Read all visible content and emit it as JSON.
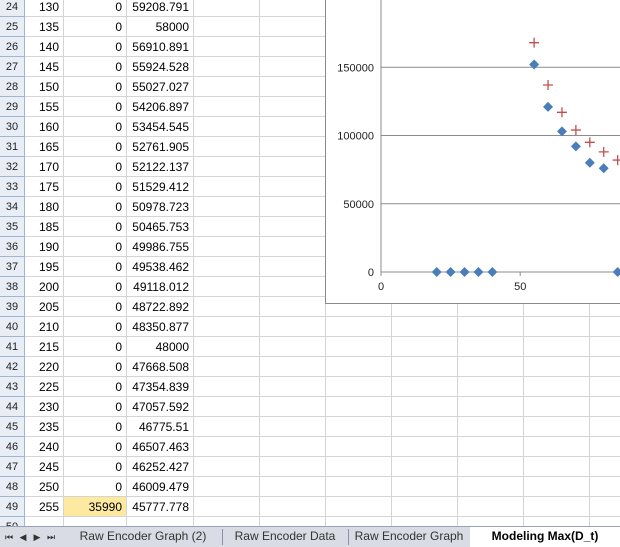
{
  "rows": [
    {
      "row": "24",
      "b": "130",
      "c": "0",
      "d": "59208.791"
    },
    {
      "row": "25",
      "b": "135",
      "c": "0",
      "d": "58000"
    },
    {
      "row": "26",
      "b": "140",
      "c": "0",
      "d": "56910.891"
    },
    {
      "row": "27",
      "b": "145",
      "c": "0",
      "d": "55924.528"
    },
    {
      "row": "28",
      "b": "150",
      "c": "0",
      "d": "55027.027"
    },
    {
      "row": "29",
      "b": "155",
      "c": "0",
      "d": "54206.897"
    },
    {
      "row": "30",
      "b": "160",
      "c": "0",
      "d": "53454.545"
    },
    {
      "row": "31",
      "b": "165",
      "c": "0",
      "d": "52761.905"
    },
    {
      "row": "32",
      "b": "170",
      "c": "0",
      "d": "52122.137"
    },
    {
      "row": "33",
      "b": "175",
      "c": "0",
      "d": "51529.412"
    },
    {
      "row": "34",
      "b": "180",
      "c": "0",
      "d": "50978.723"
    },
    {
      "row": "35",
      "b": "185",
      "c": "0",
      "d": "50465.753"
    },
    {
      "row": "36",
      "b": "190",
      "c": "0",
      "d": "49986.755"
    },
    {
      "row": "37",
      "b": "195",
      "c": "0",
      "d": "49538.462"
    },
    {
      "row": "38",
      "b": "200",
      "c": "0",
      "d": "49118.012"
    },
    {
      "row": "39",
      "b": "205",
      "c": "0",
      "d": "48722.892"
    },
    {
      "row": "40",
      "b": "210",
      "c": "0",
      "d": "48350.877"
    },
    {
      "row": "41",
      "b": "215",
      "c": "0",
      "d": "48000"
    },
    {
      "row": "42",
      "b": "220",
      "c": "0",
      "d": "47668.508"
    },
    {
      "row": "43",
      "b": "225",
      "c": "0",
      "d": "47354.839"
    },
    {
      "row": "44",
      "b": "230",
      "c": "0",
      "d": "47057.592"
    },
    {
      "row": "45",
      "b": "235",
      "c": "0",
      "d": "46775.51"
    },
    {
      "row": "46",
      "b": "240",
      "c": "0",
      "d": "46507.463"
    },
    {
      "row": "47",
      "b": "245",
      "c": "0",
      "d": "46252.427"
    },
    {
      "row": "48",
      "b": "250",
      "c": "0",
      "d": "46009.479"
    },
    {
      "row": "49",
      "b": "255",
      "c": "35990",
      "d": "45777.778"
    },
    {
      "row": "50",
      "b": "",
      "c": "",
      "d": ""
    }
  ],
  "highlight_colors": {
    "cell_fill": "#fde9a0",
    "diamond": "#4a7ebb",
    "cross": "#c0504d"
  },
  "chart_data": {
    "type": "scatter",
    "ylabels": [
      "150000",
      "100000",
      "50000",
      "0"
    ],
    "xlabels": [
      "0",
      "50"
    ],
    "ylim": [
      0,
      200000
    ],
    "xlim": [
      0,
      88
    ],
    "grid": true,
    "series": [
      {
        "marker": "diamond",
        "color": "#4a7ebb",
        "points": [
          [
            20,
            0
          ],
          [
            25,
            0
          ],
          [
            30,
            0
          ],
          [
            35,
            0
          ],
          [
            40,
            0
          ],
          [
            55,
            152000
          ],
          [
            60,
            121000
          ],
          [
            65,
            103000
          ],
          [
            70,
            92000
          ],
          [
            75,
            80000
          ],
          [
            80,
            76000
          ],
          [
            85,
            0
          ]
        ]
      },
      {
        "marker": "cross",
        "color": "#c0504d",
        "points": [
          [
            55,
            168000
          ],
          [
            60,
            137000
          ],
          [
            65,
            117000
          ],
          [
            70,
            104000
          ],
          [
            75,
            95000
          ],
          [
            80,
            88000
          ],
          [
            85,
            82000
          ]
        ]
      }
    ]
  },
  "tabs": {
    "nav": [
      "⏮",
      "◀",
      "▶",
      "⏭"
    ],
    "items": [
      "Raw Encoder Graph (2)",
      "Raw Encoder Data",
      "Raw Encoder Graph",
      "Modeling Max(D_t)"
    ],
    "active": 3
  }
}
